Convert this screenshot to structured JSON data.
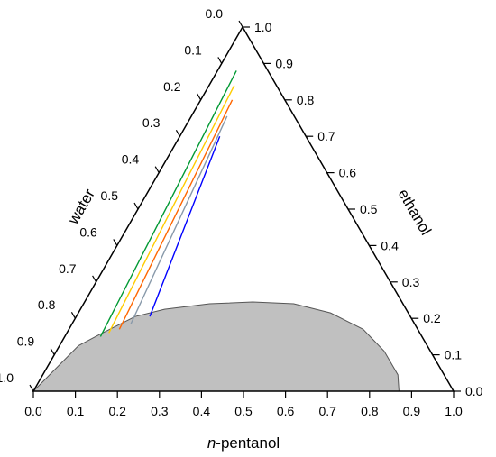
{
  "chart_data": {
    "type": "ternary",
    "axes": {
      "bottom": {
        "label_prefix": "n",
        "label_rest": "-pentanol",
        "ticks": [
          "0.0",
          "0.1",
          "0.2",
          "0.3",
          "0.4",
          "0.5",
          "0.6",
          "0.7",
          "0.8",
          "0.9",
          "1.0"
        ]
      },
      "left": {
        "label": "water",
        "ticks": [
          "0.0",
          "0.1",
          "0.2",
          "0.3",
          "0.4",
          "0.5",
          "0.6",
          "0.7",
          "0.8",
          "0.9",
          "1.0"
        ]
      },
      "right": {
        "label": "ethanol",
        "ticks": [
          "0.0",
          "0.1",
          "0.2",
          "0.3",
          "0.4",
          "0.5",
          "0.6",
          "0.7",
          "0.8",
          "0.9",
          "1.0"
        ]
      }
    },
    "two_phase_region": {
      "color": "#c0c0c0",
      "boundary": [
        {
          "pentanol": 0.0,
          "ethanol": 0.0
        },
        {
          "pentanol": 0.045,
          "ethanol": 0.125
        },
        {
          "pentanol": 0.085,
          "ethanol": 0.16
        },
        {
          "pentanol": 0.14,
          "ethanol": 0.205
        },
        {
          "pentanol": 0.2,
          "ethanol": 0.225
        },
        {
          "pentanol": 0.3,
          "ethanol": 0.24
        },
        {
          "pentanol": 0.4,
          "ethanol": 0.245
        },
        {
          "pentanol": 0.5,
          "ethanol": 0.24
        },
        {
          "pentanol": 0.6,
          "ethanol": 0.215
        },
        {
          "pentanol": 0.7,
          "ethanol": 0.17
        },
        {
          "pentanol": 0.78,
          "ethanol": 0.11
        },
        {
          "pentanol": 0.845,
          "ethanol": 0.045
        },
        {
          "pentanol": 0.87,
          "ethanol": 0.0
        }
      ]
    },
    "tie_lines": [
      {
        "color": "#009933",
        "from": {
          "pentanol": 0.085,
          "ethanol": 0.15
        },
        "to": {
          "pentanol": 0.045,
          "ethanol": 0.88
        }
      },
      {
        "color": "#ffcc00",
        "from": {
          "pentanol": 0.1,
          "ethanol": 0.16
        },
        "to": {
          "pentanol": 0.06,
          "ethanol": 0.84
        }
      },
      {
        "color": "#ff6600",
        "from": {
          "pentanol": 0.12,
          "ethanol": 0.17
        },
        "to": {
          "pentanol": 0.075,
          "ethanol": 0.8
        }
      },
      {
        "color": "#8899aa",
        "from": {
          "pentanol": 0.14,
          "ethanol": 0.185
        },
        "to": {
          "pentanol": 0.085,
          "ethanol": 0.755
        }
      },
      {
        "color": "#0000ff",
        "from": {
          "pentanol": 0.175,
          "ethanol": 0.205
        },
        "to": {
          "pentanol": 0.095,
          "ethanol": 0.7
        }
      }
    ]
  }
}
